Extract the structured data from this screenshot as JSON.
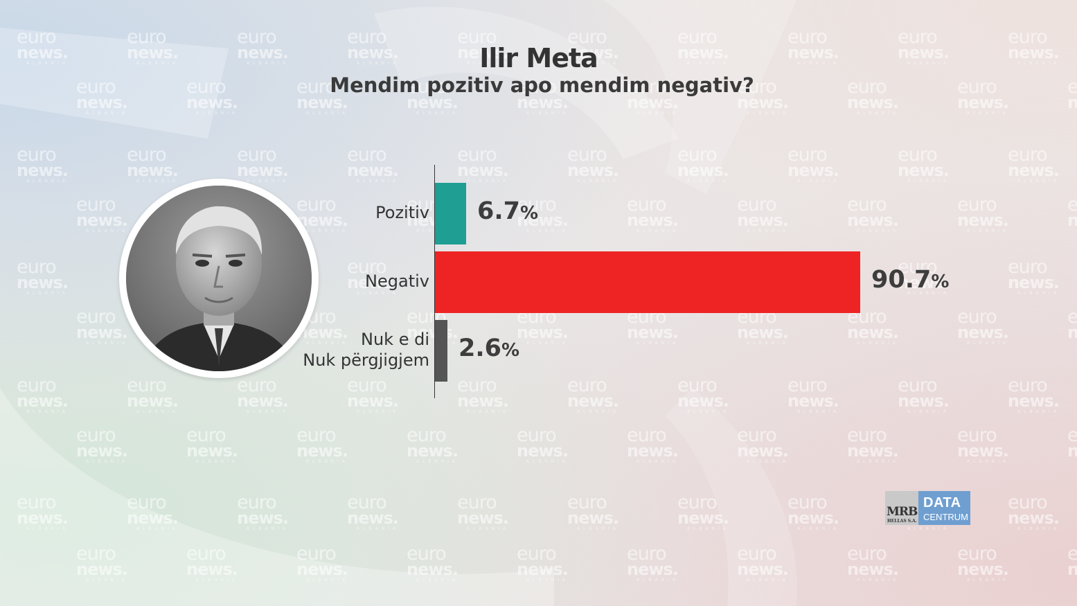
{
  "title": "Ilir Meta",
  "subtitle": "Mendim pozitiv apo mendim negativ?",
  "watermark": {
    "line1": "euro",
    "line2": "news.",
    "line3": "ALBANIA"
  },
  "logo": {
    "mrb": "MRB",
    "mrb_sub": "HELLAS S.A.",
    "data": "DATA",
    "centrum": "CENTRUM"
  },
  "chart_data": {
    "type": "bar",
    "orientation": "horizontal",
    "categories": [
      "Pozitiv",
      "Negativ",
      "Nuk e di Nuk përgjigjem"
    ],
    "category_lines": [
      [
        "Pozitiv"
      ],
      [
        "Negativ"
      ],
      [
        "Nuk e di",
        "Nuk përgjigjem"
      ]
    ],
    "values": [
      6.7,
      90.7,
      2.6
    ],
    "value_labels": [
      "6.7",
      "90.7",
      "2.6"
    ],
    "unit": "%",
    "colors": [
      "#1f9e94",
      "#ee2424",
      "#555555"
    ],
    "title": "Ilir Meta",
    "subtitle": "Mendim pozitiv apo mendim negativ?",
    "xlim": [
      0,
      100
    ],
    "grid": false,
    "legend": "none"
  }
}
